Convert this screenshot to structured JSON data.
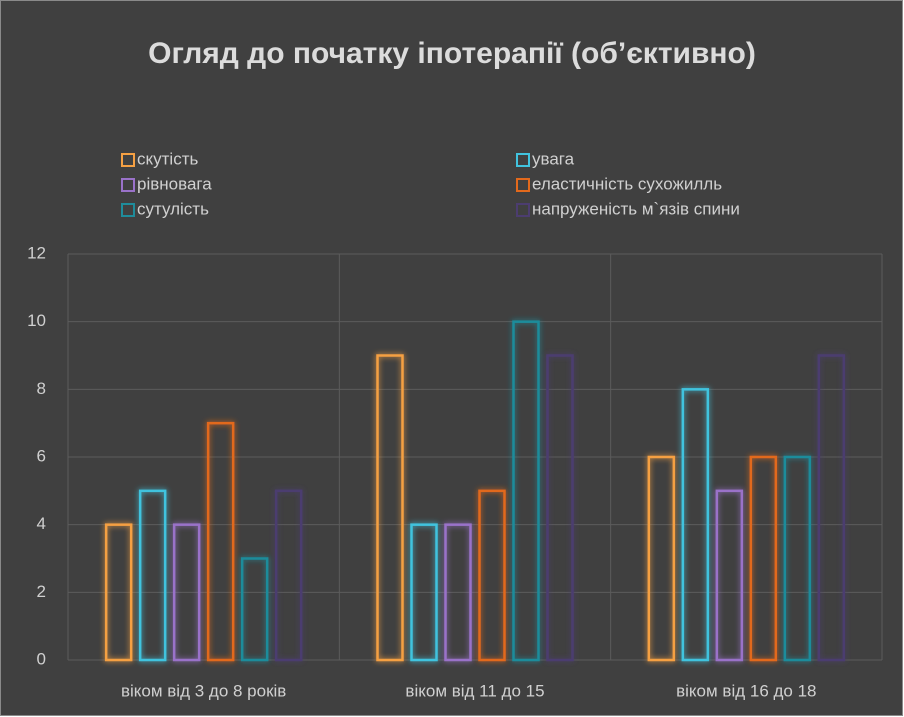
{
  "chart_data": {
    "type": "bar",
    "title": "Огляд до початку іпотерапії (об’єктивно)",
    "categories": [
      "віком від 3 до 8 років",
      "віком від 11 до 15",
      "віком від 16 до 18"
    ],
    "series": [
      {
        "name": "скутість",
        "color": "#f5a043",
        "values": [
          4,
          9,
          6
        ]
      },
      {
        "name": "увага",
        "color": "#41c3de",
        "values": [
          5,
          4,
          8
        ]
      },
      {
        "name": "рівновага",
        "color": "#9a72c9",
        "values": [
          4,
          4,
          5
        ]
      },
      {
        "name": "еластичність сухожилль",
        "color": "#e2691c",
        "values": [
          7,
          5,
          6
        ]
      },
      {
        "name": "сутулість",
        "color": "#1f8c9b",
        "values": [
          3,
          10,
          6
        ]
      },
      {
        "name": "напруженість м`язів спини",
        "color": "#4c3d70",
        "values": [
          5,
          9,
          9
        ]
      }
    ],
    "ylim": [
      0,
      12
    ],
    "yticks": [
      0,
      2,
      4,
      6,
      8,
      10,
      12
    ],
    "grid": true
  }
}
